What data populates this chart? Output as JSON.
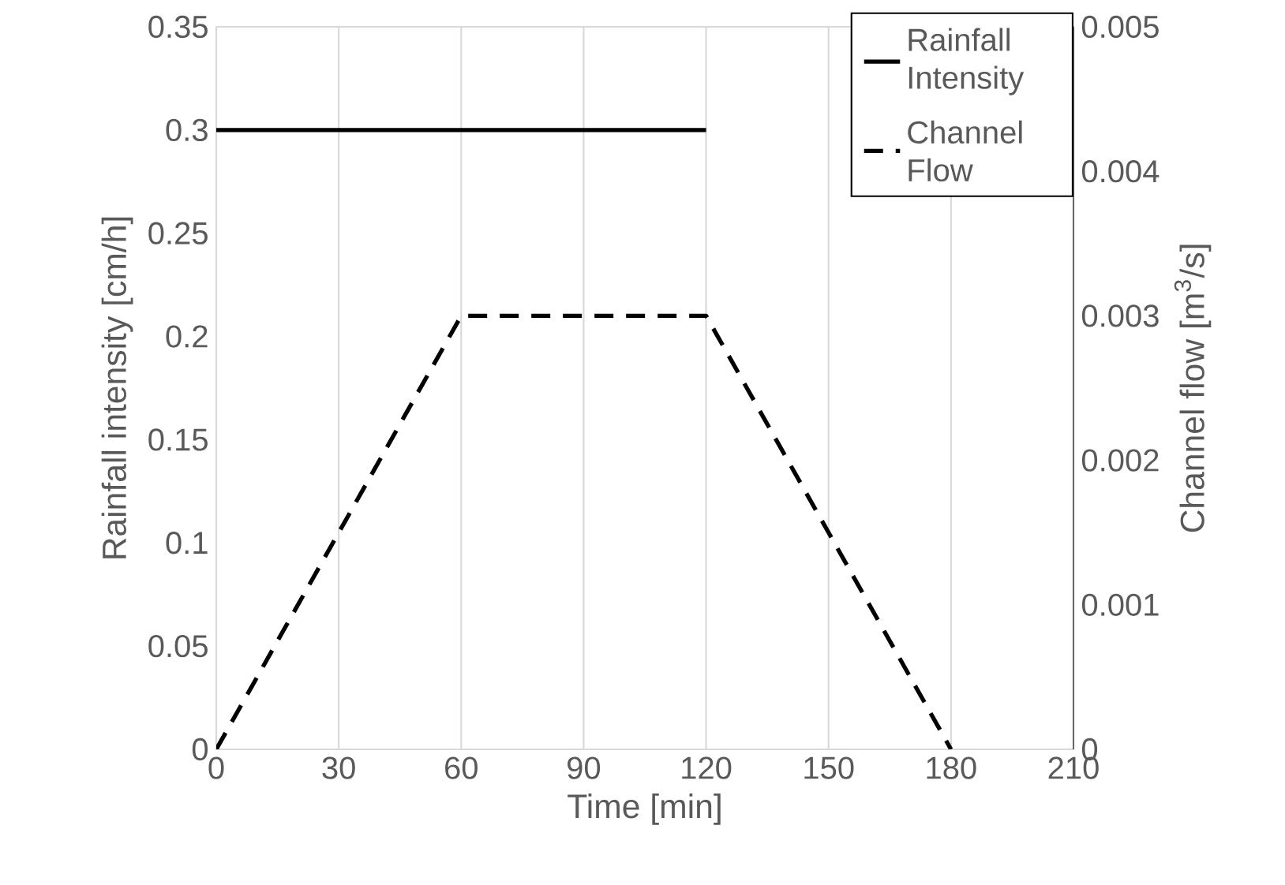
{
  "chart_data": {
    "type": "line",
    "xlabel": "Time [min]",
    "ylabel": "Rainfall intensity [cm/h]",
    "y2label": "Channel flow [m$^{3}$/s]",
    "xlim": [
      0,
      210
    ],
    "xticks": [
      0,
      30,
      60,
      90,
      120,
      150,
      180,
      210
    ],
    "ylim": [
      0,
      0.35
    ],
    "yticks": [
      0,
      0.05,
      0.1,
      0.15,
      0.2,
      0.25,
      0.3,
      0.35
    ],
    "y2lim": [
      0,
      0.005
    ],
    "y2ticks": [
      0,
      0.001,
      0.002,
      0.003,
      0.004,
      0.005
    ],
    "grid": "x",
    "legend": "top right",
    "marker": "none",
    "series": [
      {
        "name": "Rainfall Intensity",
        "color": "#000000",
        "line_style": "solid",
        "x": [
          0,
          120
        ],
        "values": [
          0.3,
          0.3
        ]
      },
      {
        "name": "Channel Flow",
        "color": "#000000",
        "line_style": "dashed",
        "axis": "y2",
        "x": [
          0,
          60,
          120,
          180
        ],
        "values": [
          0,
          0.003,
          0.003,
          0
        ]
      }
    ]
  }
}
